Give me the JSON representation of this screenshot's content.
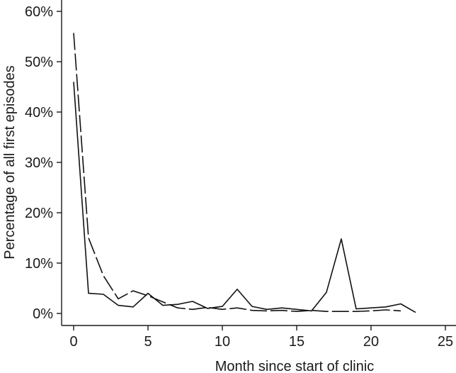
{
  "chart_data": {
    "type": "line",
    "title": "",
    "xlabel": "Month since start of clinic",
    "ylabel": "Percentage of all first episodes",
    "xlim": [
      0,
      25
    ],
    "ylim": [
      0,
      60
    ],
    "xticks": [
      0,
      5,
      10,
      15,
      20,
      25
    ],
    "xtick_labels": [
      "0",
      "5",
      "10",
      "15",
      "20",
      "25"
    ],
    "yticks": [
      0,
      10,
      20,
      30,
      40,
      50,
      60
    ],
    "ytick_labels": [
      "0%",
      "10%",
      "20%",
      "30%",
      "40%",
      "50%",
      "60%"
    ],
    "grid": false,
    "legend": "none",
    "series": [
      {
        "style": "solid",
        "x": [
          0,
          1,
          2,
          3,
          4,
          5,
          6,
          7,
          8,
          9,
          10,
          11,
          12,
          13,
          14,
          15,
          16,
          17,
          18,
          19,
          20,
          21,
          22,
          23
        ],
        "values": [
          46,
          4,
          3.8,
          1.6,
          1.3,
          4,
          1.6,
          1.8,
          2.4,
          1,
          1.4,
          4.8,
          1.4,
          0.8,
          1.1,
          0.8,
          0.5,
          4.2,
          14.8,
          0.9,
          1.1,
          1.3,
          1.9,
          0.2
        ]
      },
      {
        "style": "dashed",
        "x": [
          0,
          1,
          2,
          3,
          4,
          5,
          6,
          7,
          8,
          9,
          10,
          11,
          12,
          13,
          14,
          15,
          16,
          17,
          18,
          19,
          20,
          21,
          22
        ],
        "values": [
          55.7,
          15,
          7.5,
          2.9,
          4.5,
          3.5,
          2.3,
          1.1,
          0.8,
          1.2,
          0.8,
          1.1,
          0.6,
          0.5,
          0.6,
          0.4,
          0.6,
          0.4,
          0.4,
          0.4,
          0.5,
          0.7,
          0.5
        ]
      }
    ]
  }
}
